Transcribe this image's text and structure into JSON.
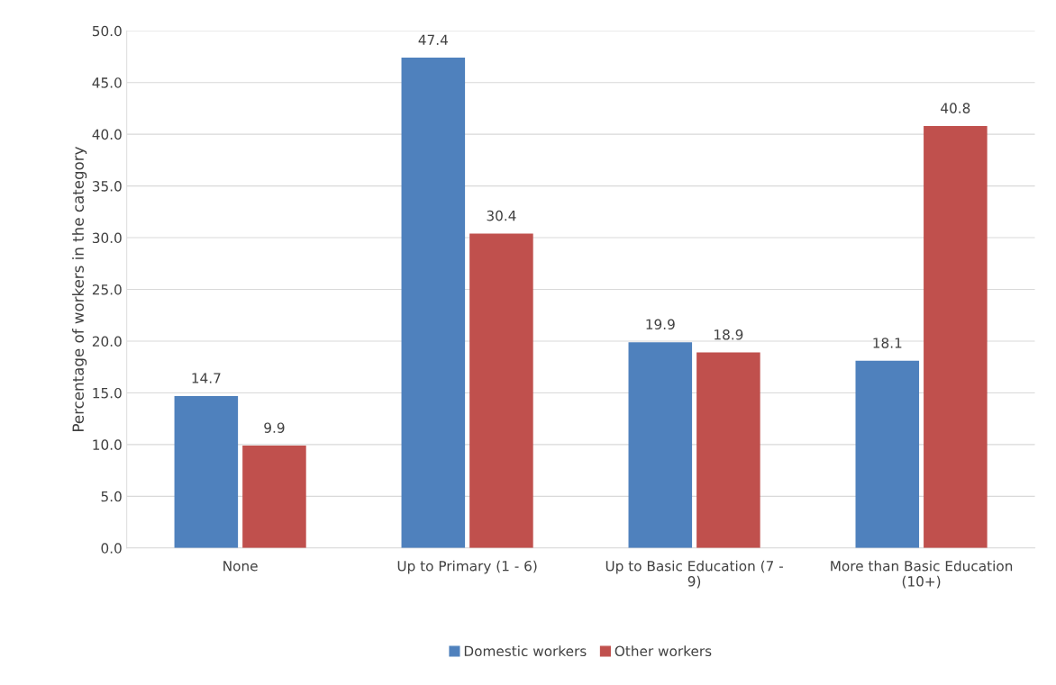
{
  "chart_data": {
    "type": "bar",
    "categories": [
      "None",
      "Up to Primary (1 - 6)",
      "Up to Basic Education (7 -\n9)",
      "More than Basic Education\n(10+)"
    ],
    "series": [
      {
        "name": "Domestic workers",
        "color": "#4f81bd",
        "values": [
          14.7,
          47.4,
          19.9,
          18.1
        ]
      },
      {
        "name": "Other workers",
        "color": "#c0504d",
        "values": [
          9.9,
          30.4,
          18.9,
          40.8
        ]
      }
    ],
    "ylabel": "Percentage of workers in the category",
    "ylim": [
      0,
      50
    ],
    "yticks": [
      {
        "value": 0,
        "label": "0.0"
      },
      {
        "value": 5,
        "label": "5.0"
      },
      {
        "value": 10,
        "label": "10.0"
      },
      {
        "value": 15,
        "label": "15.0"
      },
      {
        "value": 20,
        "label": "20.0"
      },
      {
        "value": 25,
        "label": "25.0"
      },
      {
        "value": 30,
        "label": "30.0"
      },
      {
        "value": 35,
        "label": "35.0"
      },
      {
        "value": 40,
        "label": "40.0"
      },
      {
        "value": 45,
        "label": "45.0"
      },
      {
        "value": 50,
        "label": "50.0"
      }
    ],
    "grid": "y",
    "legend": "bottom",
    "data_labels": true
  }
}
